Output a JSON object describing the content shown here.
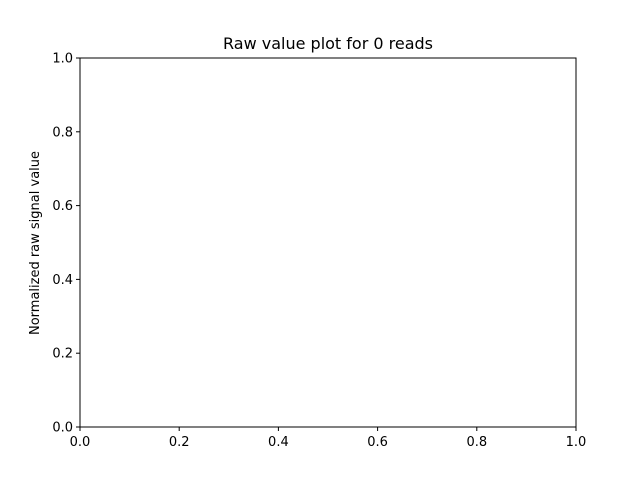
{
  "chart_data": {
    "type": "scatter",
    "title": "Raw value plot for 0 reads",
    "xlabel": "",
    "ylabel": "Normalized raw signal value",
    "xlim": [
      0.0,
      1.0
    ],
    "ylim": [
      0.0,
      1.0
    ],
    "xticks": [
      "0.0",
      "0.2",
      "0.4",
      "0.6",
      "0.8",
      "1.0"
    ],
    "yticks": [
      "0.0",
      "0.2",
      "0.4",
      "0.6",
      "0.8",
      "1.0"
    ],
    "series": [],
    "grid": false,
    "legend": "none"
  }
}
